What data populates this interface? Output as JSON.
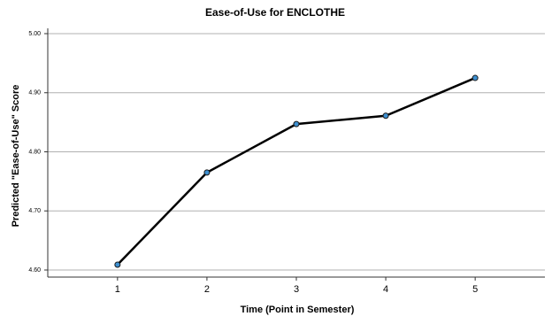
{
  "chart_data": {
    "type": "line",
    "title": "Ease-of-Use for ENCLOTHE",
    "x_label": "Time (Point in Semester)",
    "y_label": "Predicted \"Ease-of-Use\" Score",
    "x": [
      1,
      2,
      3,
      4,
      5
    ],
    "series": [
      {
        "color": "#000000",
        "marker_color": "#3d8fd0",
        "values": [
          4.609,
          4.765,
          4.847,
          4.861,
          4.925
        ]
      }
    ],
    "xlim": [
      0.22,
      5.78
    ],
    "xticks": [
      1,
      2,
      3,
      4,
      5
    ],
    "ylim": [
      4.588,
      5.0
    ],
    "yticks": [
      {
        "value": 4.6,
        "label": "4.60"
      },
      {
        "value": 4.7,
        "label": "4.70"
      },
      {
        "value": 4.8,
        "label": "4.80"
      },
      {
        "value": 4.9,
        "label": "4.90"
      },
      {
        "value": 5.0,
        "label": "5.00"
      }
    ],
    "grid": true
  }
}
